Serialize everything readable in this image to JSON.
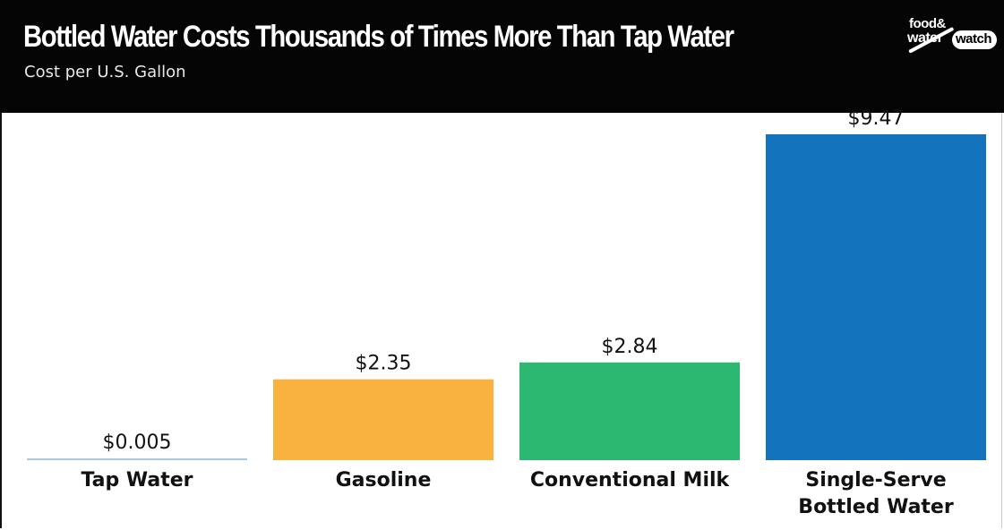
{
  "header": {
    "title": "Bottled Water Costs Thousands of Times More Than Tap Water",
    "subtitle": "Cost per U.S. Gallon",
    "logo": {
      "line1": "food&",
      "line2a": "water",
      "line2b": "watch"
    }
  },
  "chart_data": {
    "type": "bar",
    "title": "Bottled Water Costs Thousands of Times More Than Tap Water",
    "subtitle": "Cost per U.S. Gallon",
    "categories": [
      [
        "Tap Water"
      ],
      [
        "Gasoline"
      ],
      [
        "Conventional Milk"
      ],
      [
        "Single-Serve",
        "Bottled Water"
      ]
    ],
    "values": [
      0.005,
      2.35,
      2.84,
      9.47
    ],
    "value_labels": [
      "$0.005",
      "$2.35",
      "$2.84",
      "$9.47"
    ],
    "colors": [
      "#a8c8e8",
      "#f9b13f",
      "#2db872",
      "#1373bd"
    ],
    "ylim": [
      0,
      9.47
    ],
    "grid": false,
    "legend": "none"
  }
}
